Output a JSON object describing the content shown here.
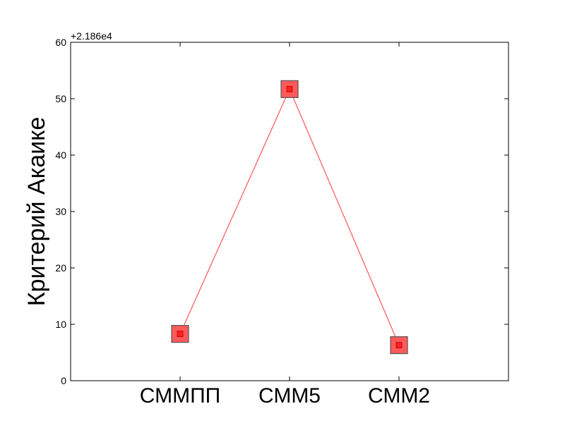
{
  "chart_data": {
    "type": "line",
    "categories": [
      "СММПП",
      "СММ5",
      "СММ2"
    ],
    "series": [
      {
        "values": [
          21868.3,
          21911.7,
          21866.3
        ]
      }
    ],
    "offset_label": "+2.186e4",
    "offset_value": 21860,
    "xlabel": "",
    "ylabel": "Критерий Акаике",
    "ylim": [
      0,
      60
    ],
    "yticks": [
      "0",
      "10",
      "20",
      "30",
      "40",
      "50",
      "60"
    ],
    "grid": false,
    "colors": {
      "line": "#ff5555",
      "marker_fill": "#ff5a5a",
      "marker_edge": "#555555",
      "inner_fill": "#ff2020"
    }
  }
}
